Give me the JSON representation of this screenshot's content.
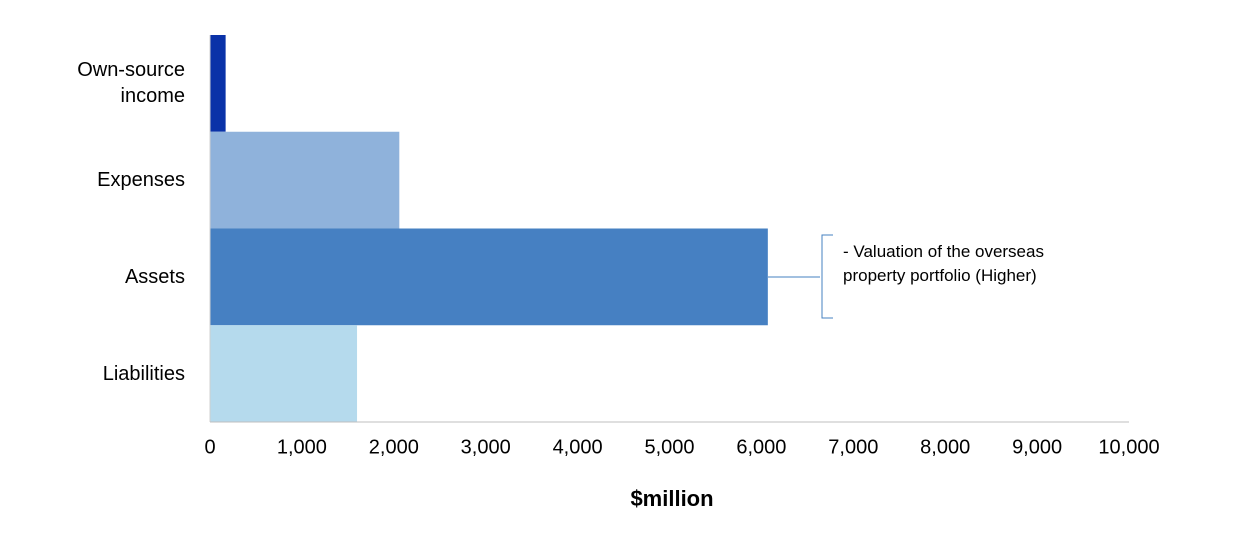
{
  "chart_data": {
    "type": "barh",
    "categories": [
      "Own-source income",
      "Expenses",
      "Assets",
      "Liabilities"
    ],
    "values": [
      170,
      2060,
      6070,
      1600
    ],
    "colors": [
      "#0a32a8",
      "#8fb2db",
      "#4680c2",
      "#b5daed"
    ],
    "xlim": [
      0,
      10000
    ],
    "xticks": [
      0,
      {
        "value": 1000,
        "label": "1,000"
      },
      {
        "value": 2000,
        "label": "2,000"
      },
      {
        "value": 3000,
        "label": "3,000"
      },
      {
        "value": 4000,
        "label": "4,000"
      },
      {
        "value": 5000,
        "label": "5,000"
      },
      {
        "value": 6000,
        "label": "6,000"
      },
      {
        "value": 7000,
        "label": "7,000"
      },
      {
        "value": 8000,
        "label": "8,000"
      },
      {
        "value": 9000,
        "label": "9,000"
      },
      {
        "value": 10000,
        "label": "10,000"
      }
    ],
    "xlabel": "$million",
    "annotation": "- Valuation of the overseas property portfolio (Higher)"
  }
}
